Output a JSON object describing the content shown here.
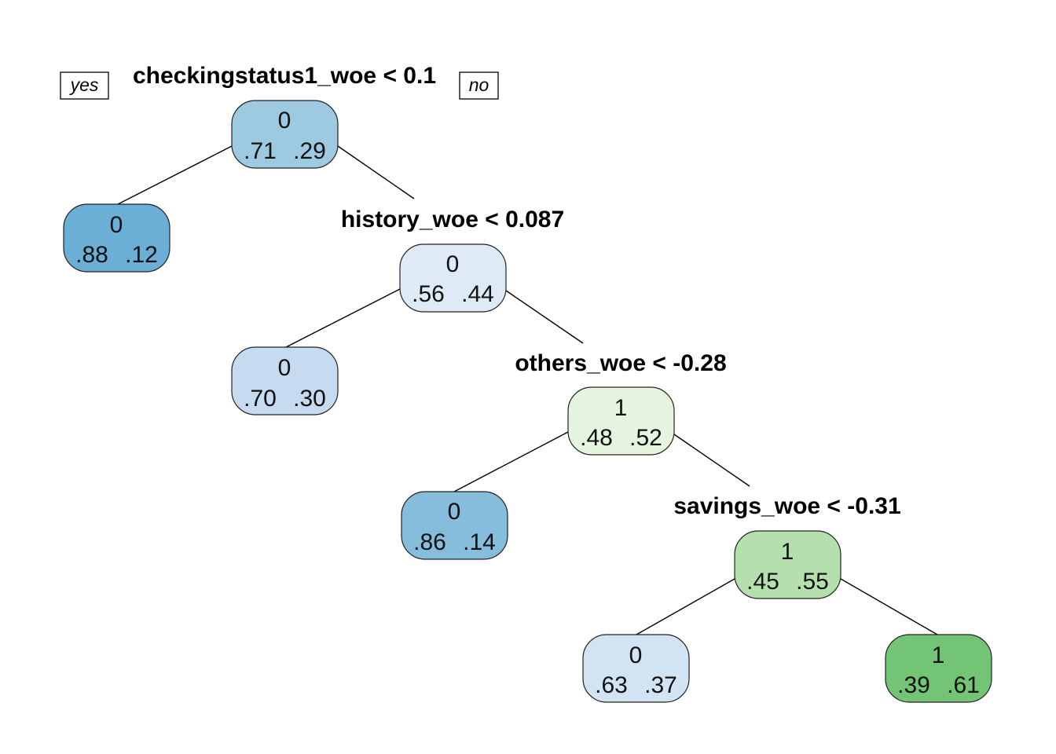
{
  "branch_labels": {
    "left": "yes",
    "right": "no"
  },
  "nodes": [
    {
      "id": "root",
      "class": "0",
      "p0": ".71",
      "p1": ".29",
      "fill": "#9ecae1",
      "split": "checkingstatus1_woe < 0.1"
    },
    {
      "id": "n2",
      "class": "0",
      "p0": ".88",
      "p1": ".12",
      "fill": "#6baed6",
      "split": ""
    },
    {
      "id": "n3",
      "class": "0",
      "p0": ".56",
      "p1": ".44",
      "fill": "#deebf7",
      "split": "history_woe < 0.087"
    },
    {
      "id": "n6",
      "class": "0",
      "p0": ".70",
      "p1": ".30",
      "fill": "#c6dbef",
      "split": ""
    },
    {
      "id": "n7",
      "class": "1",
      "p0": ".48",
      "p1": ".52",
      "fill": "#e5f5e0",
      "split": "others_woe < -0.28"
    },
    {
      "id": "n14",
      "class": "0",
      "p0": ".86",
      "p1": ".14",
      "fill": "#86bcdc",
      "split": ""
    },
    {
      "id": "n15",
      "class": "1",
      "p0": ".45",
      "p1": ".55",
      "fill": "#b5e0ad",
      "split": "savings_woe < -0.31"
    },
    {
      "id": "n30",
      "class": "0",
      "p0": ".63",
      "p1": ".37",
      "fill": "#d2e3f3",
      "split": ""
    },
    {
      "id": "n31",
      "class": "1",
      "p0": ".39",
      "p1": ".61",
      "fill": "#74c476",
      "split": ""
    }
  ]
}
